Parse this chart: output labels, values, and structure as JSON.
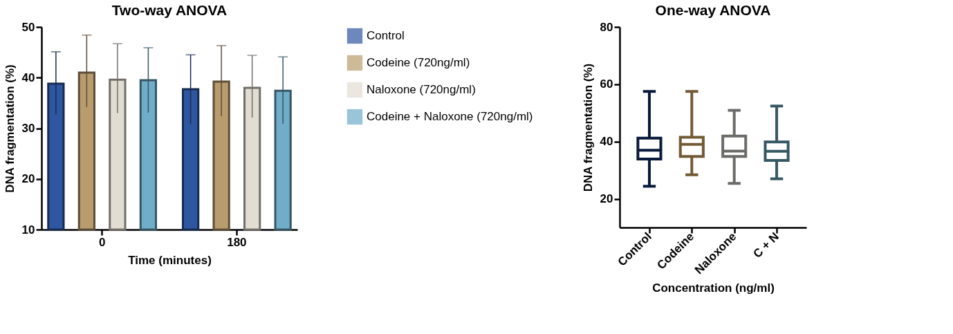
{
  "chart_data": [
    {
      "type": "bar",
      "title": "Two-way ANOVA",
      "xlabel": "Time (minutes)",
      "ylabel": "DNA fragmentation (%)",
      "categories": [
        "0",
        "180"
      ],
      "series": [
        {
          "name": "Control",
          "color": "#2f56a0",
          "values": [
            38.8,
            37.7
          ],
          "errors": [
            [
              32.8,
              45.1
            ],
            [
              30.8,
              44.5
            ]
          ]
        },
        {
          "name": "Codeine (720ng/ml)",
          "color": "#b89c6e",
          "values": [
            41.0,
            39.2
          ],
          "errors": [
            [
              34.2,
              48.4
            ],
            [
              32.4,
              46.3
            ]
          ]
        },
        {
          "name": "Naloxone (720ng/ml)",
          "color": "#e2ddd3",
          "values": [
            39.6,
            38.0
          ],
          "errors": [
            [
              33.0,
              46.7
            ],
            [
              32.1,
              44.4
            ]
          ]
        },
        {
          "name": "Codeine + Naloxone (720ng/ml)",
          "color": "#6fadc9",
          "values": [
            39.5,
            37.4
          ],
          "errors": [
            [
              33.1,
              45.9
            ],
            [
              30.9,
              44.1
            ]
          ]
        }
      ],
      "ylim": [
        10,
        50
      ],
      "yticks": [
        10,
        20,
        30,
        40,
        50
      ],
      "grid": false,
      "legend": "right"
    },
    {
      "type": "box",
      "title": "One-way ANOVA",
      "xlabel": "Concentration (ng/ml)",
      "ylabel": "DNA fragmentation (%)",
      "categories": [
        "Control",
        "Codeine",
        "Naloxone",
        "C + N"
      ],
      "colors": [
        "#0a1a3a",
        "#725a35",
        "#6b6b68",
        "#365862"
      ],
      "boxes": [
        {
          "low": 24.4,
          "q1": 33.9,
          "median": 37.0,
          "q3": 41.2,
          "high": 57.5
        },
        {
          "low": 28.4,
          "q1": 34.8,
          "median": 39.0,
          "q3": 41.5,
          "high": 57.5
        },
        {
          "low": 25.4,
          "q1": 34.8,
          "median": 36.7,
          "q3": 41.9,
          "high": 50.9
        },
        {
          "low": 27.0,
          "q1": 33.4,
          "median": 36.6,
          "q3": 39.9,
          "high": 52.4
        }
      ],
      "ylim": [
        10,
        80
      ],
      "yticks": [
        20,
        40,
        60,
        80
      ],
      "grid": false
    }
  ]
}
